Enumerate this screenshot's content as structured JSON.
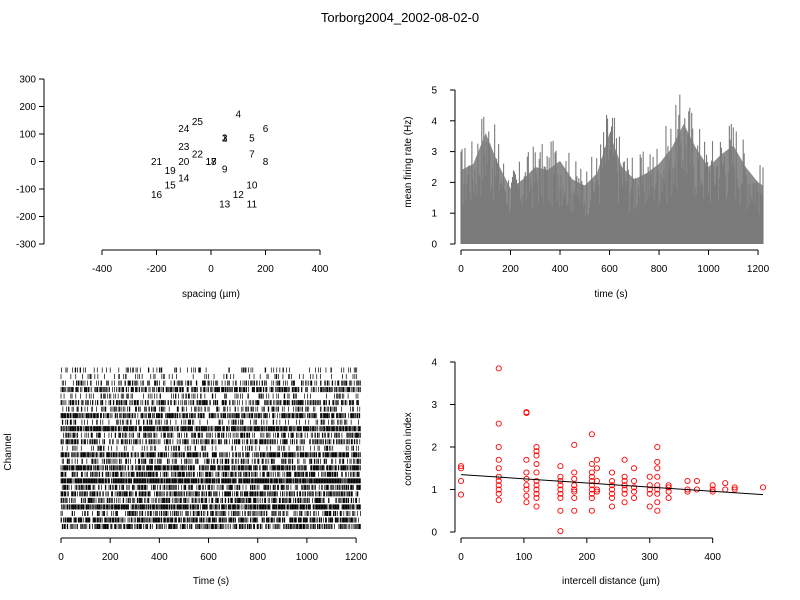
{
  "title": "Torborg2004_2002-08-02-0",
  "chart_data": [
    {
      "type": "scatter",
      "panel": "electrode-layout",
      "xlabel": "spacing (µm)",
      "ylabel": "",
      "xlim": [
        -400,
        400
      ],
      "ylim": [
        -300,
        300
      ],
      "xticks": [
        "-400",
        "-200",
        "0",
        "200",
        "400"
      ],
      "yticks": [
        "-300",
        "-200",
        "-100",
        "0",
        "100",
        "200",
        "300"
      ],
      "points": [
        {
          "label": "1",
          "x": 50,
          "y": 86
        },
        {
          "label": "2",
          "x": 50,
          "y": 86
        },
        {
          "label": "3",
          "x": 50,
          "y": 86
        },
        {
          "label": "4",
          "x": 100,
          "y": 173
        },
        {
          "label": "5",
          "x": 150,
          "y": 86
        },
        {
          "label": "6",
          "x": 200,
          "y": 120
        },
        {
          "label": "7",
          "x": 150,
          "y": 28
        },
        {
          "label": "8",
          "x": 200,
          "y": 0
        },
        {
          "label": "9",
          "x": 50,
          "y": -28
        },
        {
          "label": "10",
          "x": 150,
          "y": -86
        },
        {
          "label": "11",
          "x": 150,
          "y": -155
        },
        {
          "label": "12",
          "x": 100,
          "y": -120
        },
        {
          "label": "13",
          "x": 50,
          "y": -155
        },
        {
          "label": "14",
          "x": -100,
          "y": -60
        },
        {
          "label": "15",
          "x": -150,
          "y": -86
        },
        {
          "label": "16",
          "x": -200,
          "y": -120
        },
        {
          "label": "17",
          "x": 0,
          "y": 0
        },
        {
          "label": "18",
          "x": 0,
          "y": 0
        },
        {
          "label": "19",
          "x": -150,
          "y": -32
        },
        {
          "label": "20",
          "x": -100,
          "y": 0
        },
        {
          "label": "21",
          "x": -200,
          "y": 0
        },
        {
          "label": "22",
          "x": -50,
          "y": 28
        },
        {
          "label": "23",
          "x": -100,
          "y": 55
        },
        {
          "label": "24",
          "x": -100,
          "y": 120
        },
        {
          "label": "25",
          "x": -50,
          "y": 145
        }
      ]
    },
    {
      "type": "area",
      "panel": "mean-firing-rate",
      "xlabel": "time (s)",
      "ylabel": "mean firing rate (Hz)",
      "xlim": [
        0,
        1220
      ],
      "ylim": [
        0,
        5
      ],
      "xticks": [
        "0",
        "200",
        "400",
        "600",
        "800",
        "1000",
        "1200"
      ],
      "yticks": [
        "0",
        "1",
        "2",
        "3",
        "4",
        "5"
      ],
      "x": [
        0,
        50,
        100,
        150,
        200,
        250,
        300,
        350,
        400,
        450,
        500,
        550,
        600,
        650,
        700,
        750,
        800,
        850,
        900,
        950,
        1000,
        1050,
        1100,
        1150,
        1200,
        1220
      ],
      "y": [
        2.4,
        2.6,
        3.6,
        2.6,
        1.8,
        2.1,
        2.5,
        2.4,
        2.7,
        2.1,
        1.9,
        2.3,
        3.6,
        2.5,
        2.1,
        2.3,
        2.6,
        3.1,
        3.9,
        3.1,
        2.5,
        2.9,
        3.2,
        2.5,
        2.0,
        1.9
      ],
      "color": "#808080"
    },
    {
      "type": "raster",
      "panel": "spike-raster",
      "xlabel": "Time (s)",
      "ylabel": "Channel",
      "xlim": [
        0,
        1220
      ],
      "channels": 25,
      "xticks": [
        "0",
        "200",
        "400",
        "600",
        "800",
        "1000",
        "1200"
      ],
      "channel_density": [
        0.15,
        0.12,
        0.35,
        0.55,
        0.2,
        0.45,
        0.3,
        0.6,
        0.25,
        0.8,
        0.4,
        0.5,
        0.22,
        0.65,
        0.35,
        0.7,
        0.55,
        0.9,
        0.45,
        0.6,
        0.5,
        0.75,
        0.4,
        0.65,
        0.55
      ]
    },
    {
      "type": "scatter",
      "panel": "correlation-vs-distance",
      "xlabel": "intercell distance (µm)",
      "ylabel": "correlation index",
      "xlim": [
        0,
        480
      ],
      "ylim": [
        0,
        4
      ],
      "xticks": [
        "0",
        "100",
        "200",
        "300",
        "400"
      ],
      "yticks": [
        "0",
        "1",
        "2",
        "3",
        "4"
      ],
      "point_color": "#ff0000",
      "fit_line": {
        "x": [
          0,
          480
        ],
        "y": [
          1.35,
          0.88
        ]
      },
      "points": [
        [
          0,
          1.55
        ],
        [
          0,
          1.5
        ],
        [
          0,
          1.2
        ],
        [
          0,
          0.88
        ],
        [
          60,
          3.85
        ],
        [
          60,
          2.55
        ],
        [
          60,
          2.0
        ],
        [
          60,
          1.7
        ],
        [
          60,
          1.5
        ],
        [
          60,
          1.3
        ],
        [
          60,
          1.2
        ],
        [
          60,
          1.1
        ],
        [
          60,
          1.0
        ],
        [
          60,
          0.9
        ],
        [
          60,
          0.75
        ],
        [
          104,
          2.82
        ],
        [
          104,
          2.8
        ],
        [
          104,
          1.7
        ],
        [
          104,
          1.4
        ],
        [
          104,
          1.25
        ],
        [
          104,
          1.1
        ],
        [
          104,
          1.0
        ],
        [
          104,
          0.85
        ],
        [
          104,
          0.7
        ],
        [
          120,
          2.0
        ],
        [
          120,
          1.9
        ],
        [
          120,
          1.8
        ],
        [
          120,
          1.6
        ],
        [
          120,
          1.4
        ],
        [
          120,
          1.2
        ],
        [
          120,
          1.1
        ],
        [
          120,
          1.0
        ],
        [
          120,
          0.9
        ],
        [
          120,
          0.8
        ],
        [
          120,
          0.6
        ],
        [
          158,
          1.55
        ],
        [
          158,
          1.3
        ],
        [
          158,
          1.2
        ],
        [
          158,
          1.1
        ],
        [
          158,
          1.0
        ],
        [
          158,
          0.9
        ],
        [
          158,
          0.8
        ],
        [
          158,
          0.5
        ],
        [
          158,
          0.02
        ],
        [
          180,
          2.05
        ],
        [
          180,
          1.4
        ],
        [
          180,
          1.25
        ],
        [
          180,
          1.1
        ],
        [
          180,
          1.0
        ],
        [
          180,
          0.95
        ],
        [
          180,
          0.8
        ],
        [
          180,
          0.5
        ],
        [
          208,
          2.3
        ],
        [
          208,
          1.6
        ],
        [
          208,
          1.4
        ],
        [
          208,
          1.3
        ],
        [
          208,
          1.2
        ],
        [
          208,
          1.1
        ],
        [
          208,
          1.0
        ],
        [
          208,
          0.9
        ],
        [
          208,
          0.8
        ],
        [
          208,
          0.5
        ],
        [
          216,
          1.7
        ],
        [
          216,
          1.5
        ],
        [
          216,
          1.2
        ],
        [
          216,
          1.0
        ],
        [
          216,
          0.95
        ],
        [
          240,
          1.4
        ],
        [
          240,
          1.2
        ],
        [
          240,
          1.1
        ],
        [
          240,
          1.0
        ],
        [
          240,
          0.9
        ],
        [
          240,
          0.8
        ],
        [
          240,
          0.6
        ],
        [
          260,
          1.7
        ],
        [
          260,
          1.3
        ],
        [
          260,
          1.2
        ],
        [
          260,
          1.1
        ],
        [
          260,
          1.0
        ],
        [
          260,
          0.9
        ],
        [
          260,
          0.7
        ],
        [
          275,
          1.5
        ],
        [
          275,
          1.2
        ],
        [
          275,
          1.05
        ],
        [
          275,
          0.95
        ],
        [
          275,
          0.8
        ],
        [
          300,
          1.3
        ],
        [
          300,
          1.1
        ],
        [
          300,
          1.0
        ],
        [
          300,
          0.9
        ],
        [
          300,
          0.6
        ],
        [
          312,
          2.0
        ],
        [
          312,
          1.65
        ],
        [
          312,
          1.5
        ],
        [
          312,
          1.3
        ],
        [
          312,
          1.1
        ],
        [
          312,
          1.0
        ],
        [
          312,
          0.9
        ],
        [
          312,
          0.7
        ],
        [
          312,
          0.5
        ],
        [
          330,
          1.1
        ],
        [
          330,
          1.05
        ],
        [
          330,
          0.95
        ],
        [
          330,
          0.8
        ],
        [
          360,
          1.2
        ],
        [
          360,
          1.0
        ],
        [
          360,
          0.95
        ],
        [
          375,
          1.2
        ],
        [
          375,
          1.0
        ],
        [
          400,
          1.1
        ],
        [
          400,
          1.0
        ],
        [
          400,
          0.95
        ],
        [
          420,
          1.15
        ],
        [
          420,
          1.0
        ],
        [
          435,
          1.05
        ],
        [
          435,
          1.0
        ],
        [
          480,
          1.05
        ]
      ]
    }
  ]
}
